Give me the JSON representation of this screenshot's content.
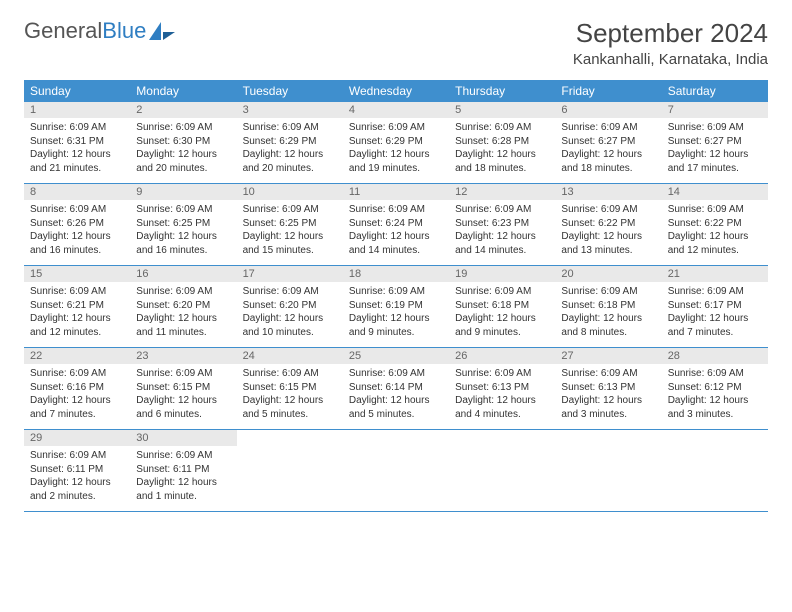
{
  "brand": {
    "part1": "General",
    "part2": "Blue"
  },
  "title": "September 2024",
  "location": "Kankanhalli, Karnataka, India",
  "colors": {
    "header_bg": "#3f8fce",
    "header_text": "#ffffff",
    "daynum_bg": "#e9e9e9",
    "daynum_text": "#666666",
    "body_text": "#333333",
    "rule": "#3f8fce",
    "brand_gray": "#555555",
    "brand_blue": "#2f7ec2",
    "page_bg": "#ffffff"
  },
  "typography": {
    "month_title_size": 26,
    "location_size": 15,
    "weekday_size": 12,
    "daynum_size": 11,
    "body_size": 10
  },
  "weekdays": [
    "Sunday",
    "Monday",
    "Tuesday",
    "Wednesday",
    "Thursday",
    "Friday",
    "Saturday"
  ],
  "days": [
    {
      "n": 1,
      "sunrise": "6:09 AM",
      "sunset": "6:31 PM",
      "daylight": "12 hours and 21 minutes."
    },
    {
      "n": 2,
      "sunrise": "6:09 AM",
      "sunset": "6:30 PM",
      "daylight": "12 hours and 20 minutes."
    },
    {
      "n": 3,
      "sunrise": "6:09 AM",
      "sunset": "6:29 PM",
      "daylight": "12 hours and 20 minutes."
    },
    {
      "n": 4,
      "sunrise": "6:09 AM",
      "sunset": "6:29 PM",
      "daylight": "12 hours and 19 minutes."
    },
    {
      "n": 5,
      "sunrise": "6:09 AM",
      "sunset": "6:28 PM",
      "daylight": "12 hours and 18 minutes."
    },
    {
      "n": 6,
      "sunrise": "6:09 AM",
      "sunset": "6:27 PM",
      "daylight": "12 hours and 18 minutes."
    },
    {
      "n": 7,
      "sunrise": "6:09 AM",
      "sunset": "6:27 PM",
      "daylight": "12 hours and 17 minutes."
    },
    {
      "n": 8,
      "sunrise": "6:09 AM",
      "sunset": "6:26 PM",
      "daylight": "12 hours and 16 minutes."
    },
    {
      "n": 9,
      "sunrise": "6:09 AM",
      "sunset": "6:25 PM",
      "daylight": "12 hours and 16 minutes."
    },
    {
      "n": 10,
      "sunrise": "6:09 AM",
      "sunset": "6:25 PM",
      "daylight": "12 hours and 15 minutes."
    },
    {
      "n": 11,
      "sunrise": "6:09 AM",
      "sunset": "6:24 PM",
      "daylight": "12 hours and 14 minutes."
    },
    {
      "n": 12,
      "sunrise": "6:09 AM",
      "sunset": "6:23 PM",
      "daylight": "12 hours and 14 minutes."
    },
    {
      "n": 13,
      "sunrise": "6:09 AM",
      "sunset": "6:22 PM",
      "daylight": "12 hours and 13 minutes."
    },
    {
      "n": 14,
      "sunrise": "6:09 AM",
      "sunset": "6:22 PM",
      "daylight": "12 hours and 12 minutes."
    },
    {
      "n": 15,
      "sunrise": "6:09 AM",
      "sunset": "6:21 PM",
      "daylight": "12 hours and 12 minutes."
    },
    {
      "n": 16,
      "sunrise": "6:09 AM",
      "sunset": "6:20 PM",
      "daylight": "12 hours and 11 minutes."
    },
    {
      "n": 17,
      "sunrise": "6:09 AM",
      "sunset": "6:20 PM",
      "daylight": "12 hours and 10 minutes."
    },
    {
      "n": 18,
      "sunrise": "6:09 AM",
      "sunset": "6:19 PM",
      "daylight": "12 hours and 9 minutes."
    },
    {
      "n": 19,
      "sunrise": "6:09 AM",
      "sunset": "6:18 PM",
      "daylight": "12 hours and 9 minutes."
    },
    {
      "n": 20,
      "sunrise": "6:09 AM",
      "sunset": "6:18 PM",
      "daylight": "12 hours and 8 minutes."
    },
    {
      "n": 21,
      "sunrise": "6:09 AM",
      "sunset": "6:17 PM",
      "daylight": "12 hours and 7 minutes."
    },
    {
      "n": 22,
      "sunrise": "6:09 AM",
      "sunset": "6:16 PM",
      "daylight": "12 hours and 7 minutes."
    },
    {
      "n": 23,
      "sunrise": "6:09 AM",
      "sunset": "6:15 PM",
      "daylight": "12 hours and 6 minutes."
    },
    {
      "n": 24,
      "sunrise": "6:09 AM",
      "sunset": "6:15 PM",
      "daylight": "12 hours and 5 minutes."
    },
    {
      "n": 25,
      "sunrise": "6:09 AM",
      "sunset": "6:14 PM",
      "daylight": "12 hours and 5 minutes."
    },
    {
      "n": 26,
      "sunrise": "6:09 AM",
      "sunset": "6:13 PM",
      "daylight": "12 hours and 4 minutes."
    },
    {
      "n": 27,
      "sunrise": "6:09 AM",
      "sunset": "6:13 PM",
      "daylight": "12 hours and 3 minutes."
    },
    {
      "n": 28,
      "sunrise": "6:09 AM",
      "sunset": "6:12 PM",
      "daylight": "12 hours and 3 minutes."
    },
    {
      "n": 29,
      "sunrise": "6:09 AM",
      "sunset": "6:11 PM",
      "daylight": "12 hours and 2 minutes."
    },
    {
      "n": 30,
      "sunrise": "6:09 AM",
      "sunset": "6:11 PM",
      "daylight": "12 hours and 1 minute."
    }
  ],
  "labels": {
    "sunrise": "Sunrise:",
    "sunset": "Sunset:",
    "daylight": "Daylight:"
  },
  "layout": {
    "start_weekday": 0,
    "total_days": 30,
    "columns": 7
  }
}
